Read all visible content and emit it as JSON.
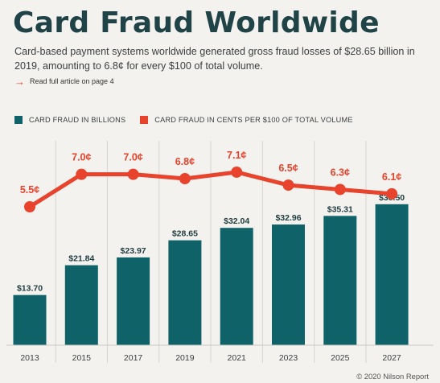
{
  "title": "Card Fraud Worldwide",
  "subtitle": "Card-based payment systems worldwide generated gross fraud losses of $28.65 billion in 2019, amounting to 6.8¢ for every $100 of total volume.",
  "link_text": "Read full article on page 4",
  "source": "© 2020 Nilson Report",
  "colors": {
    "bars": "#0f6268",
    "line": "#e8432c",
    "title": "#1f4347"
  },
  "chart_data": {
    "type": "bar",
    "categories": [
      "2013",
      "2015",
      "2017",
      "2019",
      "2021",
      "2023",
      "2025",
      "2027"
    ],
    "series": [
      {
        "name": "CARD FRAUD IN BILLIONS",
        "type": "bar",
        "values": [
          13.7,
          21.84,
          23.97,
          28.65,
          32.04,
          32.96,
          35.31,
          38.5
        ],
        "labels": [
          "$13.70",
          "$21.84",
          "$23.97",
          "$28.65",
          "$32.04",
          "$32.96",
          "$35.31",
          "$38.50"
        ]
      },
      {
        "name": "CARD FRAUD IN CENTS PER $100 OF TOTAL VOLUME",
        "type": "line",
        "values": [
          5.5,
          7.0,
          7.0,
          6.8,
          7.1,
          6.5,
          6.3,
          6.1
        ],
        "labels": [
          "5.5¢",
          "7.0¢",
          "7.0¢",
          "6.8¢",
          "7.1¢",
          "6.5¢",
          "6.3¢",
          "6.1¢"
        ]
      }
    ],
    "legend_position": "top-left",
    "grid": false
  }
}
